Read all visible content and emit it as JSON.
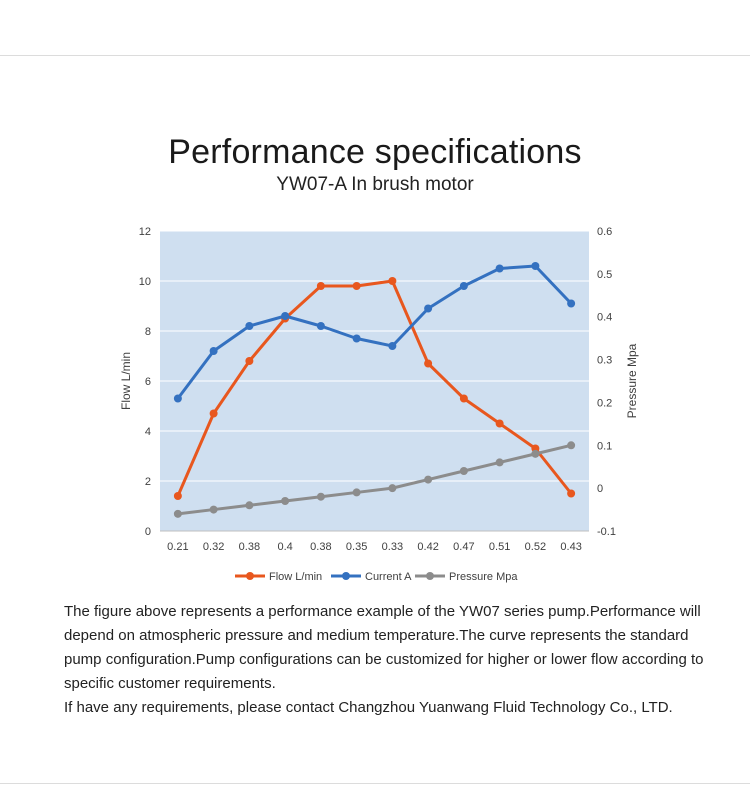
{
  "page": {
    "title": "Performance specifications",
    "subtitle": "YW07-A In brush motor"
  },
  "description": {
    "paragraph1": "The figure above represents a performance example of the YW07 series pump.Performance will depend on atmospheric pressure and medium temperature.The curve represents the standard pump configuration.Pump configurations can be customized for higher or lower flow according to specific customer requirements.",
    "paragraph2": "If have any requirements, please contact Changzhou Yuanwang Fluid Technology Co., LTD."
  },
  "chart_data": {
    "type": "line",
    "categories": [
      "0.21",
      "0.32",
      "0.38",
      "0.4",
      "0.38",
      "0.35",
      "0.33",
      "0.42",
      "0.47",
      "0.51",
      "0.52",
      "0.43"
    ],
    "ylabel": "Flow  L/min",
    "ylim": [
      0,
      12
    ],
    "yticks": [
      "0",
      "2",
      "4",
      "6",
      "8",
      "10",
      "12"
    ],
    "y2label": "Pressure Mpa",
    "y2lim": [
      -0.1,
      0.6
    ],
    "y2ticks": [
      "-0.1",
      "0",
      "0.1",
      "0.2",
      "0.3",
      "0.4",
      "0.5",
      "0.6"
    ],
    "grid": true,
    "legend_position": "bottom",
    "plot_background": "#cfdff0",
    "series": [
      {
        "name": "Flow L/min",
        "color": "#e8571e",
        "axis": "left",
        "values": [
          1.4,
          4.7,
          6.8,
          8.5,
          9.8,
          9.8,
          10.0,
          6.7,
          5.3,
          4.3,
          3.3,
          1.5
        ]
      },
      {
        "name": "Current A",
        "color": "#3471c0",
        "axis": "left",
        "values": [
          5.3,
          7.2,
          8.2,
          8.6,
          8.2,
          7.7,
          7.4,
          8.9,
          9.8,
          10.5,
          10.6,
          9.1
        ]
      },
      {
        "name": "Pressure Mpa",
        "color": "#8c8c8c",
        "axis": "right",
        "values": [
          -0.06,
          -0.05,
          -0.04,
          -0.03,
          -0.02,
          -0.01,
          0.0,
          0.02,
          0.04,
          0.06,
          0.08,
          0.1
        ]
      }
    ]
  }
}
